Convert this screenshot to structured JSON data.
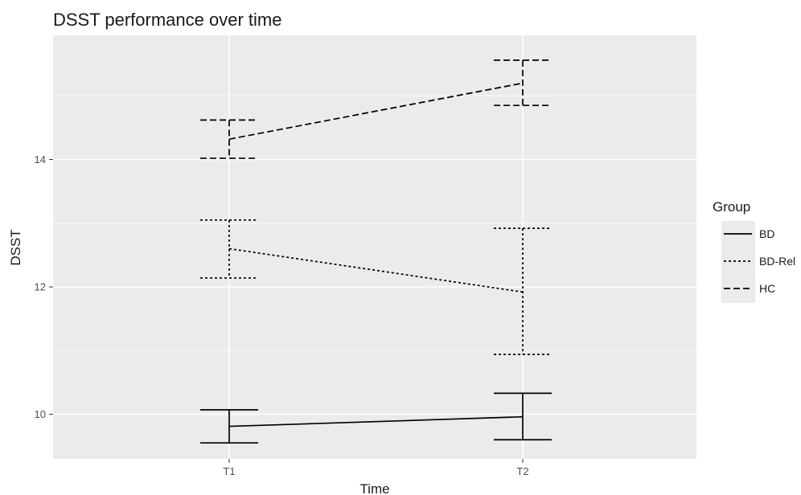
{
  "chart_data": {
    "type": "line",
    "title": "DSST performance over time",
    "xlabel": "Time",
    "ylabel": "DSST",
    "categories": [
      "T1",
      "T2"
    ],
    "ylim": [
      9.3,
      15.95
    ],
    "yticks": [
      10,
      12,
      14
    ],
    "grid": true,
    "legend": {
      "title": "Group",
      "position": "right"
    },
    "series": [
      {
        "name": "BD",
        "linetype": "solid",
        "values": [
          9.81,
          9.96
        ],
        "lower": [
          9.55,
          9.6
        ],
        "upper": [
          10.07,
          10.33
        ]
      },
      {
        "name": "BD-Rel",
        "linetype": "dotted",
        "values": [
          12.6,
          11.92
        ],
        "lower": [
          12.14,
          10.94
        ],
        "upper": [
          13.05,
          12.92
        ]
      },
      {
        "name": "HC",
        "linetype": "dashed",
        "values": [
          14.32,
          15.2
        ],
        "lower": [
          14.02,
          14.85
        ],
        "upper": [
          14.62,
          15.56
        ]
      }
    ],
    "colors": {
      "panel": "#ebebeb",
      "grid": "#ffffff",
      "line": "#000000"
    }
  }
}
